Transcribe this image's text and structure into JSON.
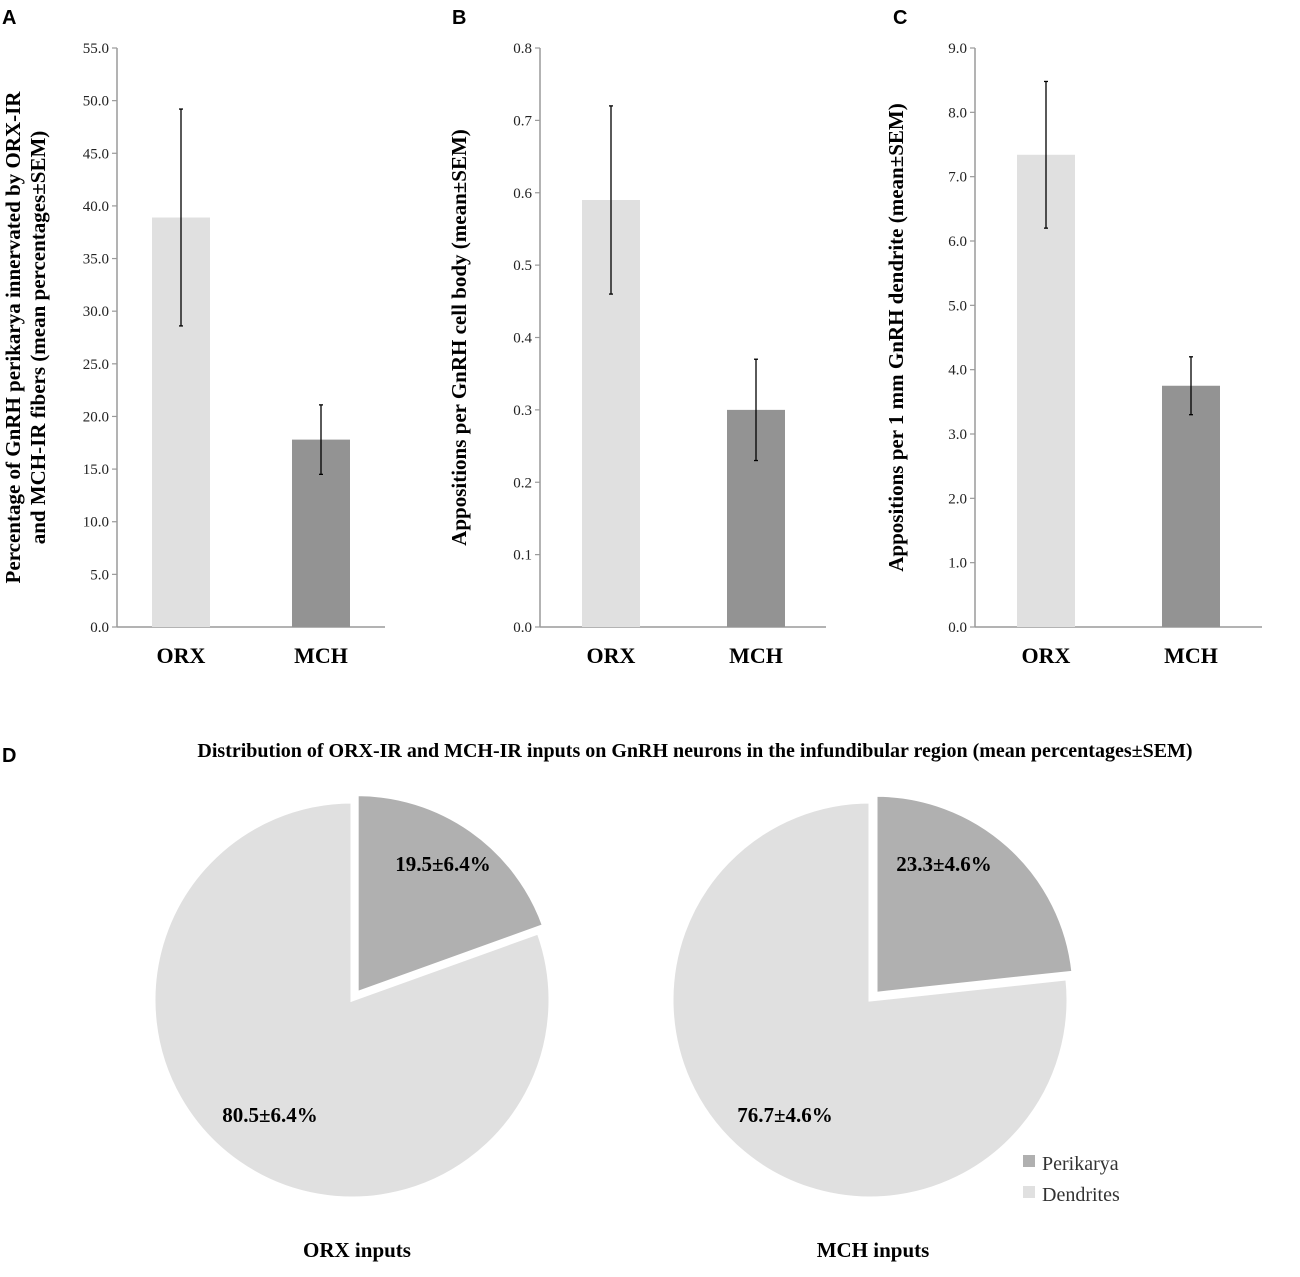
{
  "colors": {
    "orx_bar": "#e0e0e0",
    "mch_bar": "#939393",
    "perikarya": "#b0b0b0",
    "dendrites": "#e0e0e0",
    "axis": "#9a9a9a",
    "text": "#000000"
  },
  "chart_data": [
    {
      "id": "A",
      "panel_letter": "A",
      "type": "bar",
      "categories": [
        "ORX",
        "MCH"
      ],
      "values": [
        38.9,
        17.8
      ],
      "errors": [
        10.3,
        3.3
      ],
      "ylabel_lines": [
        "Percentage of GnRH perikarya innervated by ORX-IR",
        "and MCH-IR fibers (mean percentages±SEM)"
      ],
      "ylim": [
        0,
        55
      ],
      "yticks": [
        "0.0",
        "5.0",
        "10.0",
        "15.0",
        "20.0",
        "25.0",
        "30.0",
        "35.0",
        "40.0",
        "45.0",
        "50.0",
        "55.0"
      ]
    },
    {
      "id": "B",
      "panel_letter": "B",
      "type": "bar",
      "categories": [
        "ORX",
        "MCH"
      ],
      "values": [
        0.59,
        0.3
      ],
      "errors": [
        0.13,
        0.07
      ],
      "ylabel_lines": [
        "Appositions per GnRH cell body (mean±SEM)"
      ],
      "ylim": [
        0,
        0.8
      ],
      "yticks": [
        "0.0",
        "0.1",
        "0.2",
        "0.3",
        "0.4",
        "0.5",
        "0.6",
        "0.7",
        "0.8"
      ]
    },
    {
      "id": "C",
      "panel_letter": "C",
      "type": "bar",
      "categories": [
        "ORX",
        "MCH"
      ],
      "values": [
        7.34,
        3.75
      ],
      "errors": [
        1.14,
        0.45
      ],
      "ylabel_lines": [
        "Appositions per 1 mm GnRH dendrite (mean±SEM)"
      ],
      "ylim": [
        0,
        9
      ],
      "yticks": [
        "0.0",
        "1.0",
        "2.0",
        "3.0",
        "4.0",
        "5.0",
        "6.0",
        "7.0",
        "8.0",
        "9.0"
      ]
    },
    {
      "id": "D",
      "panel_letter": "D",
      "type": "pie",
      "title": "Distribution of ORX-IR and MCH-IR inputs on GnRH neurons in the infundibular region (mean percentages±SEM)",
      "legend": [
        "Perikarya",
        "Dendrites"
      ],
      "pies": [
        {
          "caption": "ORX inputs",
          "slices": [
            {
              "name": "Perikarya",
              "value": 19.5,
              "label": "19.5±6.4%"
            },
            {
              "name": "Dendrites",
              "value": 80.5,
              "label": "80.5±6.4%"
            }
          ]
        },
        {
          "caption": "MCH inputs",
          "slices": [
            {
              "name": "Perikarya",
              "value": 23.3,
              "label": "23.3±4.6%"
            },
            {
              "name": "Dendrites",
              "value": 76.7,
              "label": "76.7±4.6%"
            }
          ]
        }
      ]
    }
  ]
}
